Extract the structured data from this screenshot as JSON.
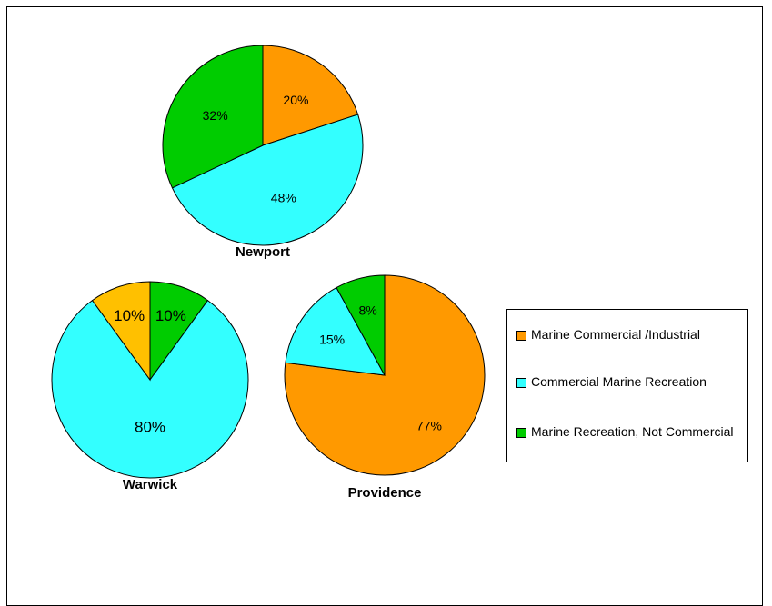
{
  "colors": {
    "marine_commercial_industrial": "#FF9900",
    "commercial_marine_recreation": "#33FFFF",
    "marine_recreation_not_commercial": "#00CC00",
    "warwick_first_slice": "#FFC000"
  },
  "legend": {
    "items": [
      {
        "label": "Marine Commercial /Industrial",
        "color": "#FF9900"
      },
      {
        "label": "Commercial Marine Recreation",
        "color": "#33FFFF"
      },
      {
        "label": "Marine Recreation, Not Commercial",
        "color": "#00CC00"
      }
    ]
  },
  "chart_data": [
    {
      "type": "pie",
      "title": "Newport",
      "slices": [
        {
          "label": "Marine Commercial /Industrial",
          "value": 20,
          "text": "20%",
          "color": "#FF9900"
        },
        {
          "label": "Commercial Marine Recreation",
          "value": 48,
          "text": "48%",
          "color": "#33FFFF"
        },
        {
          "label": "Marine Recreation, Not Commercial",
          "value": 32,
          "text": "32%",
          "color": "#00CC00"
        }
      ]
    },
    {
      "type": "pie",
      "title": "Warwick",
      "slices": [
        {
          "label": "Marine Recreation, Not Commercial",
          "value": 10,
          "text": "10%",
          "color": "#00CC00"
        },
        {
          "label": "Commercial Marine Recreation",
          "value": 80,
          "text": "80%",
          "color": "#33FFFF"
        },
        {
          "label": "",
          "value": 10,
          "text": "10%",
          "color": "#FFC000"
        }
      ]
    },
    {
      "type": "pie",
      "title": "Providence",
      "slices": [
        {
          "label": "Marine Commercial /Industrial",
          "value": 77,
          "text": "77%",
          "color": "#FF9900"
        },
        {
          "label": "Commercial Marine Recreation",
          "value": 15,
          "text": "15%",
          "color": "#33FFFF"
        },
        {
          "label": "Marine Recreation, Not Commercial",
          "value": 8,
          "text": "8%",
          "color": "#00CC00"
        }
      ]
    }
  ]
}
